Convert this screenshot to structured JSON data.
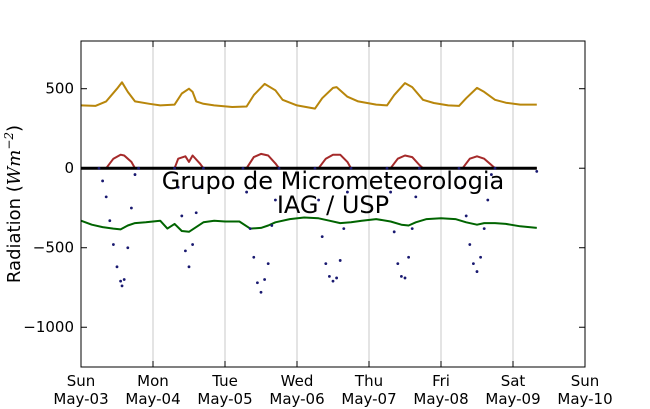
{
  "chart_data": {
    "type": "line",
    "ylabel": "Radiation (Wm^-2)",
    "ylabel_parts": {
      "prefix": "Radiation (",
      "unit": "Wm",
      "exp": "−2",
      "suffix": ")"
    },
    "ylim": [
      -1250,
      800
    ],
    "xlim": [
      0,
      7
    ],
    "grid": "vertical",
    "y_ticks": [
      500,
      0,
      -500,
      -1000
    ],
    "y_tick_labels": [
      "500",
      "0",
      "−500",
      "−1000"
    ],
    "x_ticks": [
      {
        "day": "Sun",
        "date": "May-03"
      },
      {
        "day": "Mon",
        "date": "May-04"
      },
      {
        "day": "Tue",
        "date": "May-05"
      },
      {
        "day": "Wed",
        "date": "May-06"
      },
      {
        "day": "Thu",
        "date": "May-07"
      },
      {
        "day": "Fri",
        "date": "May-08"
      },
      {
        "day": "Sat",
        "date": "May-09"
      },
      {
        "day": "Sun",
        "date": "May-10"
      }
    ],
    "watermark": [
      "Grupo de Micrometeorologia",
      "IAG / USP"
    ],
    "series": [
      {
        "color": "#b8860b",
        "style": "line",
        "points": [
          [
            0,
            395
          ],
          [
            0.2,
            392
          ],
          [
            0.35,
            420
          ],
          [
            0.5,
            500
          ],
          [
            0.57,
            540
          ],
          [
            0.65,
            480
          ],
          [
            0.75,
            420
          ],
          [
            0.95,
            405
          ],
          [
            1.1,
            395
          ],
          [
            1.3,
            400
          ],
          [
            1.4,
            470
          ],
          [
            1.5,
            500
          ],
          [
            1.55,
            480
          ],
          [
            1.6,
            420
          ],
          [
            1.7,
            405
          ],
          [
            1.85,
            395
          ],
          [
            2.1,
            385
          ],
          [
            2.3,
            388
          ],
          [
            2.4,
            460
          ],
          [
            2.55,
            530
          ],
          [
            2.7,
            490
          ],
          [
            2.8,
            430
          ],
          [
            3.0,
            395
          ],
          [
            3.25,
            375
          ],
          [
            3.35,
            440
          ],
          [
            3.5,
            505
          ],
          [
            3.55,
            510
          ],
          [
            3.7,
            450
          ],
          [
            3.85,
            420
          ],
          [
            4.1,
            400
          ],
          [
            4.25,
            395
          ],
          [
            4.35,
            460
          ],
          [
            4.5,
            535
          ],
          [
            4.6,
            510
          ],
          [
            4.75,
            430
          ],
          [
            4.9,
            410
          ],
          [
            5.1,
            395
          ],
          [
            5.25,
            392
          ],
          [
            5.35,
            440
          ],
          [
            5.5,
            505
          ],
          [
            5.6,
            480
          ],
          [
            5.75,
            430
          ],
          [
            5.9,
            412
          ],
          [
            6.1,
            400
          ],
          [
            6.33,
            400
          ]
        ]
      },
      {
        "color": "#a52a2a",
        "style": "line",
        "points": [
          [
            0,
            0
          ],
          [
            0.35,
            0
          ],
          [
            0.45,
            60
          ],
          [
            0.55,
            85
          ],
          [
            0.6,
            80
          ],
          [
            0.7,
            40
          ],
          [
            0.75,
            0
          ],
          [
            1.3,
            0
          ],
          [
            1.35,
            60
          ],
          [
            1.45,
            75
          ],
          [
            1.5,
            40
          ],
          [
            1.55,
            80
          ],
          [
            1.65,
            30
          ],
          [
            1.7,
            0
          ],
          [
            2.3,
            0
          ],
          [
            2.4,
            70
          ],
          [
            2.5,
            90
          ],
          [
            2.6,
            80
          ],
          [
            2.7,
            30
          ],
          [
            2.75,
            0
          ],
          [
            3.3,
            0
          ],
          [
            3.4,
            60
          ],
          [
            3.5,
            85
          ],
          [
            3.6,
            85
          ],
          [
            3.7,
            40
          ],
          [
            3.75,
            0
          ],
          [
            4.3,
            0
          ],
          [
            4.4,
            60
          ],
          [
            4.5,
            80
          ],
          [
            4.6,
            70
          ],
          [
            4.7,
            20
          ],
          [
            4.75,
            0
          ],
          [
            5.3,
            0
          ],
          [
            5.4,
            60
          ],
          [
            5.5,
            75
          ],
          [
            5.6,
            60
          ],
          [
            5.7,
            20
          ],
          [
            5.75,
            0
          ],
          [
            6.33,
            0
          ]
        ]
      },
      {
        "color": "#000000",
        "style": "line",
        "points": [
          [
            0,
            0
          ],
          [
            6.33,
            0
          ]
        ]
      },
      {
        "color": "#006400",
        "style": "line",
        "points": [
          [
            0,
            -330
          ],
          [
            0.15,
            -355
          ],
          [
            0.3,
            -370
          ],
          [
            0.45,
            -380
          ],
          [
            0.55,
            -385
          ],
          [
            0.65,
            -360
          ],
          [
            0.75,
            -345
          ],
          [
            0.9,
            -340
          ],
          [
            1.1,
            -330
          ],
          [
            1.2,
            -380
          ],
          [
            1.3,
            -350
          ],
          [
            1.4,
            -395
          ],
          [
            1.5,
            -400
          ],
          [
            1.6,
            -370
          ],
          [
            1.7,
            -340
          ],
          [
            1.85,
            -330
          ],
          [
            2.0,
            -335
          ],
          [
            2.2,
            -335
          ],
          [
            2.35,
            -380
          ],
          [
            2.5,
            -375
          ],
          [
            2.6,
            -360
          ],
          [
            2.7,
            -340
          ],
          [
            2.9,
            -320
          ],
          [
            3.1,
            -310
          ],
          [
            3.3,
            -315
          ],
          [
            3.45,
            -330
          ],
          [
            3.6,
            -345
          ],
          [
            3.75,
            -340
          ],
          [
            3.9,
            -330
          ],
          [
            4.1,
            -320
          ],
          [
            4.3,
            -335
          ],
          [
            4.45,
            -355
          ],
          [
            4.55,
            -360
          ],
          [
            4.65,
            -340
          ],
          [
            4.8,
            -320
          ],
          [
            5.0,
            -315
          ],
          [
            5.2,
            -320
          ],
          [
            5.35,
            -340
          ],
          [
            5.5,
            -355
          ],
          [
            5.6,
            -345
          ],
          [
            5.75,
            -345
          ],
          [
            5.9,
            -350
          ],
          [
            6.1,
            -365
          ],
          [
            6.33,
            -375
          ]
        ]
      },
      {
        "color": "#191970",
        "style": "dots",
        "points": [
          [
            0.25,
            0
          ],
          [
            0.3,
            -80
          ],
          [
            0.35,
            -180
          ],
          [
            0.4,
            -330
          ],
          [
            0.45,
            -480
          ],
          [
            0.5,
            -620
          ],
          [
            0.55,
            -710
          ],
          [
            0.57,
            -740
          ],
          [
            0.6,
            -700
          ],
          [
            0.65,
            -500
          ],
          [
            0.7,
            -250
          ],
          [
            0.75,
            -40
          ],
          [
            0.8,
            0
          ],
          [
            1.3,
            0
          ],
          [
            1.35,
            -120
          ],
          [
            1.4,
            -300
          ],
          [
            1.45,
            -520
          ],
          [
            1.5,
            -620
          ],
          [
            1.55,
            -480
          ],
          [
            1.6,
            -280
          ],
          [
            1.65,
            -120
          ],
          [
            1.7,
            0
          ],
          [
            2.25,
            0
          ],
          [
            2.3,
            -150
          ],
          [
            2.35,
            -380
          ],
          [
            2.4,
            -560
          ],
          [
            2.45,
            -720
          ],
          [
            2.5,
            -780
          ],
          [
            2.55,
            -700
          ],
          [
            2.6,
            -600
          ],
          [
            2.65,
            -360
          ],
          [
            2.7,
            -200
          ],
          [
            2.75,
            0
          ],
          [
            3.25,
            0
          ],
          [
            3.3,
            -200
          ],
          [
            3.35,
            -430
          ],
          [
            3.4,
            -600
          ],
          [
            3.45,
            -680
          ],
          [
            3.5,
            -710
          ],
          [
            3.55,
            -690
          ],
          [
            3.6,
            -580
          ],
          [
            3.65,
            -380
          ],
          [
            3.7,
            -150
          ],
          [
            3.75,
            0
          ],
          [
            4.25,
            0
          ],
          [
            4.3,
            -150
          ],
          [
            4.35,
            -400
          ],
          [
            4.4,
            -600
          ],
          [
            4.45,
            -680
          ],
          [
            4.5,
            -690
          ],
          [
            4.55,
            -560
          ],
          [
            4.6,
            -380
          ],
          [
            4.65,
            -180
          ],
          [
            4.7,
            0
          ],
          [
            5.25,
            0
          ],
          [
            5.3,
            -120
          ],
          [
            5.35,
            -300
          ],
          [
            5.4,
            -480
          ],
          [
            5.45,
            -600
          ],
          [
            5.5,
            -650
          ],
          [
            5.55,
            -560
          ],
          [
            5.6,
            -380
          ],
          [
            5.65,
            -200
          ],
          [
            5.7,
            -40
          ],
          [
            5.75,
            0
          ],
          [
            6.33,
            -20
          ]
        ]
      }
    ]
  }
}
